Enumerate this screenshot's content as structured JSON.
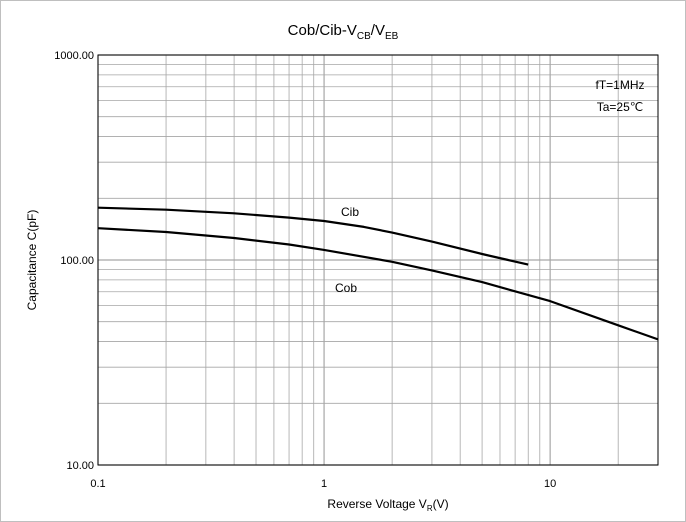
{
  "chart_data": {
    "type": "line",
    "title": "Cob/Cib-V",
    "title_sub1": "CB",
    "title_mid": "/V",
    "title_sub2": "EB",
    "xlabel_main": "Reverse Voltage  V",
    "xlabel_sub": "R",
    "xlabel_unit": "(V)",
    "ylabel": "Capacitance  C(pF)",
    "x_scale": "log",
    "y_scale": "log",
    "xlim": [
      0.1,
      30
    ],
    "ylim": [
      10,
      1000
    ],
    "grid": true,
    "x_ticks": [
      {
        "value": 0.1,
        "label": "0.1"
      },
      {
        "value": 1,
        "label": "1"
      },
      {
        "value": 10,
        "label": "10"
      }
    ],
    "y_ticks": [
      {
        "value": 10,
        "label": "10.00"
      },
      {
        "value": 100,
        "label": "100.00"
      },
      {
        "value": 1000,
        "label": "1000.00"
      }
    ],
    "annotations": [
      "fT=1MHz",
      "Ta=25℃"
    ],
    "series": [
      {
        "name": "Cib",
        "x": [
          0.1,
          0.2,
          0.4,
          0.7,
          1.0,
          1.5,
          2.0,
          3.0,
          5.0,
          8.0
        ],
        "y": [
          180,
          176,
          169,
          161,
          155,
          145,
          136,
          123,
          107,
          95
        ]
      },
      {
        "name": "Cob",
        "x": [
          0.1,
          0.2,
          0.4,
          0.7,
          1.0,
          2.0,
          3.0,
          5.0,
          10.0,
          20.0,
          30.0
        ],
        "y": [
          143,
          137,
          128,
          119,
          112,
          98,
          89,
          78,
          63,
          48,
          41
        ]
      }
    ]
  }
}
